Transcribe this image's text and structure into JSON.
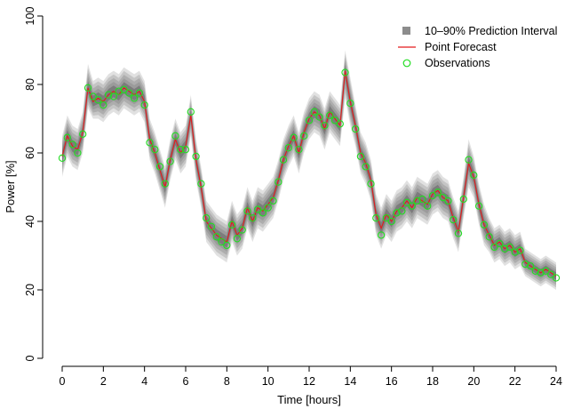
{
  "chart_data": {
    "type": "line",
    "title": "",
    "xlabel": "Time [hours]",
    "ylabel": "Power [%]",
    "xlim": [
      0,
      24
    ],
    "ylim": [
      0,
      100
    ],
    "xticks": [
      0,
      2,
      4,
      6,
      8,
      10,
      12,
      14,
      16,
      18,
      20,
      22,
      24
    ],
    "yticks": [
      0,
      20,
      40,
      60,
      80,
      100
    ],
    "grid": false,
    "legend_position": "top-right",
    "legend": {
      "interval": "10–90% Prediction Interval",
      "forecast": "Point Forecast",
      "observations": "Observations"
    },
    "colors": {
      "interval": "#8c8c8c",
      "forecast": "#e41a1c",
      "observations": "#22dd22"
    },
    "x": [
      0,
      0.25,
      0.5,
      0.75,
      1,
      1.25,
      1.5,
      1.75,
      2,
      2.25,
      2.5,
      2.75,
      3,
      3.25,
      3.5,
      3.75,
      4,
      4.25,
      4.5,
      4.75,
      5,
      5.25,
      5.5,
      5.75,
      6,
      6.25,
      6.5,
      6.75,
      7,
      7.25,
      7.5,
      7.75,
      8,
      8.25,
      8.5,
      8.75,
      9,
      9.25,
      9.5,
      9.75,
      10,
      10.25,
      10.5,
      10.75,
      11,
      11.25,
      11.5,
      11.75,
      12,
      12.25,
      12.5,
      12.75,
      13,
      13.25,
      13.5,
      13.75,
      14,
      14.25,
      14.5,
      14.75,
      15,
      15.25,
      15.5,
      15.75,
      16,
      16.25,
      16.5,
      16.75,
      17,
      17.25,
      17.5,
      17.75,
      18,
      18.25,
      18.5,
      18.75,
      19,
      19.25,
      19.5,
      19.75,
      20,
      20.25,
      20.5,
      20.75,
      21,
      21.25,
      21.5,
      21.75,
      22,
      22.25,
      22.5,
      22.75,
      23,
      23.25,
      23.5,
      23.75,
      24
    ],
    "series": [
      {
        "name": "Point Forecast",
        "values": [
          59,
          65,
          62,
          61,
          66,
          79,
          75,
          76,
          75,
          77,
          78,
          77,
          79,
          78,
          77,
          78,
          75,
          64,
          60,
          55,
          50,
          58,
          64,
          60,
          62,
          71,
          58,
          50,
          40,
          38,
          36,
          35,
          34,
          40,
          36,
          38,
          44,
          40,
          44,
          43,
          45,
          47,
          52,
          58,
          62,
          65,
          60,
          66,
          70,
          72,
          71,
          67,
          72,
          70,
          68,
          84,
          75,
          68,
          60,
          57,
          52,
          42,
          38,
          42,
          40,
          43,
          44,
          46,
          44,
          47,
          46,
          45,
          48,
          49,
          47,
          46,
          41,
          37,
          47,
          57,
          53,
          45,
          39,
          36,
          33,
          34,
          32,
          33,
          31,
          32,
          28,
          27,
          26,
          25,
          26,
          25,
          24
        ],
        "lower": [
          53,
          59,
          56,
          55,
          60,
          73,
          70,
          70,
          69,
          71,
          72,
          71,
          73,
          72,
          71,
          72,
          69,
          58,
          54,
          49,
          44,
          52,
          58,
          54,
          56,
          65,
          52,
          44,
          34,
          32,
          30,
          29,
          28,
          34,
          30,
          32,
          38,
          34,
          38,
          37,
          39,
          41,
          46,
          52,
          56,
          59,
          54,
          60,
          64,
          66,
          65,
          61,
          66,
          64,
          62,
          76,
          68,
          62,
          54,
          51,
          46,
          36,
          32,
          36,
          34,
          37,
          38,
          40,
          38,
          41,
          40,
          39,
          42,
          43,
          41,
          40,
          35,
          31,
          41,
          50,
          47,
          39,
          33,
          31,
          28,
          29,
          27,
          28,
          26,
          27,
          24,
          23,
          22,
          21,
          22,
          21,
          20
        ],
        "upper": [
          65,
          71,
          68,
          67,
          72,
          86,
          81,
          82,
          81,
          83,
          84,
          83,
          85,
          84,
          83,
          84,
          81,
          70,
          66,
          61,
          56,
          64,
          70,
          66,
          68,
          77,
          64,
          56,
          46,
          44,
          42,
          41,
          40,
          46,
          42,
          44,
          50,
          46,
          50,
          49,
          51,
          53,
          58,
          64,
          68,
          71,
          66,
          72,
          76,
          78,
          77,
          73,
          78,
          76,
          74,
          90,
          82,
          74,
          66,
          63,
          58,
          48,
          44,
          48,
          46,
          49,
          50,
          52,
          50,
          53,
          52,
          51,
          54,
          55,
          53,
          52,
          47,
          43,
          53,
          64,
          59,
          51,
          45,
          41,
          38,
          39,
          37,
          38,
          36,
          37,
          32,
          31,
          30,
          29,
          30,
          29,
          28
        ]
      },
      {
        "name": "Observations",
        "values": [
          58.5,
          64.5,
          62.5,
          60,
          65.5,
          79,
          76.5,
          75.5,
          74,
          77,
          76.5,
          78,
          78.5,
          77.5,
          76,
          77.5,
          74,
          63,
          61,
          56,
          51,
          57.5,
          65,
          61,
          61,
          72,
          59,
          51,
          41,
          38.5,
          35.5,
          34,
          33,
          39,
          35,
          37.5,
          43,
          41,
          43.5,
          42.5,
          44,
          46,
          51.5,
          58,
          61.5,
          64.5,
          61,
          65,
          69.5,
          72,
          70.5,
          68,
          71,
          69.5,
          68.5,
          83.5,
          74.5,
          67,
          59,
          56,
          51,
          41,
          36,
          41,
          40,
          42.5,
          43,
          45.5,
          44.5,
          46,
          46.5,
          44.5,
          47.5,
          48.5,
          47,
          46,
          40.5,
          36.5,
          46.5,
          58,
          53.5,
          44.5,
          39,
          35.5,
          32.5,
          33.5,
          32,
          32.5,
          31,
          31.5,
          27.5,
          27,
          25.5,
          25,
          25.5,
          24.5,
          23.5
        ]
      }
    ]
  }
}
